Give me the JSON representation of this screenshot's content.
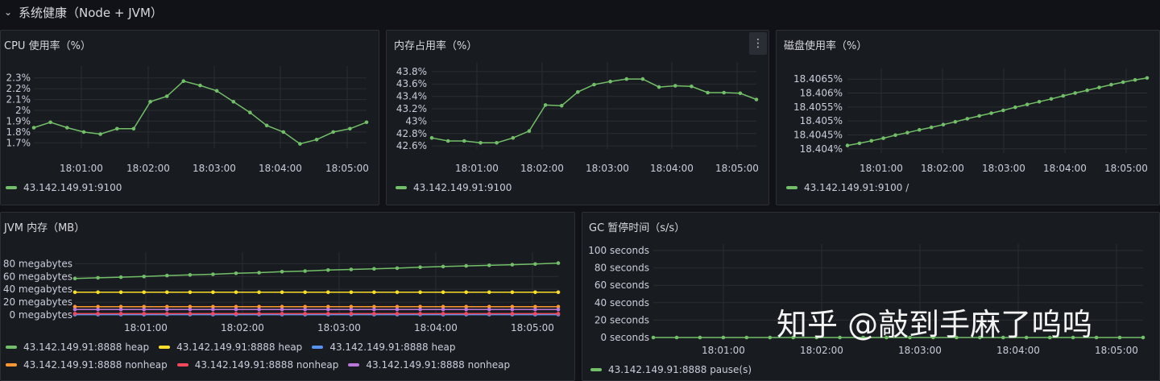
{
  "row": {
    "title": "系统健康（Node + JVM）"
  },
  "watermark": "知乎 @敲到手麻了呜呜",
  "colors": {
    "green": "#73bf69",
    "yellow": "#fade2a",
    "blue": "#5794f2",
    "orange": "#ff9830",
    "red": "#f2495c",
    "purple": "#b877d9",
    "grid": "#2a2d33",
    "tick": "#ccccdc"
  },
  "panels": {
    "cpu": {
      "title": "CPU 使用率（%）",
      "chart_data": {
        "type": "line",
        "x_ticks": [
          "18:01:00",
          "18:02:00",
          "18:03:00",
          "18:04:00",
          "18:05:00"
        ],
        "y_ticks": [
          "2.3%",
          "2.2%",
          "2.1%",
          "2%",
          "1.9%",
          "1.8%",
          "1.7%"
        ],
        "ylim": [
          1.65,
          2.35
        ],
        "series": [
          {
            "name": "43.142.149.91:9100",
            "color": "#73bf69",
            "values": [
              1.84,
              1.89,
              1.84,
              1.8,
              1.78,
              1.83,
              1.83,
              2.08,
              2.13,
              2.27,
              2.23,
              2.18,
              2.08,
              1.98,
              1.86,
              1.8,
              1.69,
              1.73,
              1.8,
              1.83,
              1.89
            ]
          }
        ]
      }
    },
    "mem": {
      "title": "内存占用率（%）",
      "chart_data": {
        "type": "line",
        "x_ticks": [
          "18:01:00",
          "18:02:00",
          "18:03:00",
          "18:04:00",
          "18:05:00"
        ],
        "y_ticks": [
          "43.8%",
          "43.6%",
          "43.4%",
          "43.2%",
          "43%",
          "42.8%",
          "42.6%"
        ],
        "ylim": [
          42.55,
          43.85
        ],
        "series": [
          {
            "name": "43.142.149.91:9100",
            "color": "#73bf69",
            "values": [
              42.73,
              42.68,
              42.68,
              42.65,
              42.65,
              42.73,
              42.84,
              43.26,
              43.25,
              43.47,
              43.59,
              43.64,
              43.68,
              43.68,
              43.55,
              43.57,
              43.56,
              43.46,
              43.46,
              43.45,
              43.35
            ]
          }
        ]
      }
    },
    "disk": {
      "title": "磁盘使用率（%）",
      "chart_data": {
        "type": "line",
        "x_ticks": [
          "18:01:00",
          "18:02:00",
          "18:03:00",
          "18:04:00",
          "18:05:00"
        ],
        "y_ticks": [
          "18.4065%",
          "18.406%",
          "18.4055%",
          "18.405%",
          "18.4045%",
          "18.404%"
        ],
        "ylim": [
          18.40385,
          18.40665
        ],
        "series": [
          {
            "name": "43.142.149.91:9100 /",
            "color": "#73bf69",
            "values": [
              18.40412,
              18.4042,
              18.40429,
              18.40438,
              18.40449,
              18.40458,
              18.40468,
              18.40477,
              18.40487,
              18.40497,
              18.40508,
              18.40518,
              18.40528,
              18.40538,
              18.40549,
              18.40559,
              18.40569,
              18.40579,
              18.4059,
              18.406,
              18.4061,
              18.4062,
              18.4063,
              18.40639,
              18.40647,
              18.40654
            ]
          }
        ]
      }
    },
    "jvm": {
      "title": "JVM 内存（MB）",
      "chart_data": {
        "type": "line",
        "x_ticks": [
          "18:01:00",
          "18:02:00",
          "18:03:00",
          "18:04:00",
          "18:05:00"
        ],
        "y_ticks": [
          "80 megabytes",
          "60 megabytes",
          "40 megabytes",
          "20 megabytes",
          "0 megabytes"
        ],
        "ylim": [
          0,
          88
        ],
        "series": [
          {
            "name": "43.142.149.91:8888 heap",
            "color": "#73bf69",
            "values": [
              57,
              58,
              59,
              60,
              61.5,
              62.5,
              63.5,
              65,
              66,
              67.5,
              68.5,
              70,
              71,
              72,
              73,
              74.5,
              75.5,
              76.5,
              77.5,
              78.5,
              79.5,
              81
            ]
          },
          {
            "name": "43.142.149.91:8888 heap",
            "color": "#fade2a",
            "values": [
              35.5,
              35.5,
              35.5,
              35.5,
              35.5,
              35.5,
              35.5,
              35.5,
              35.5,
              35.5,
              35.5,
              35.5,
              35.5,
              35.5,
              35.5,
              35.5,
              35.5,
              35.5,
              35.5,
              35.5,
              35.5,
              35.5
            ]
          },
          {
            "name": "43.142.149.91:8888 heap",
            "color": "#5794f2",
            "values": [
              0.5,
              0.5,
              0.5,
              0.5,
              0.5,
              0.5,
              0.5,
              0.5,
              0.5,
              0.5,
              0.5,
              0.5,
              0.5,
              0.5,
              0.5,
              0.5,
              0.5,
              0.5,
              0.5,
              0.5,
              0.5,
              0.5
            ]
          },
          {
            "name": "43.142.149.91:8888 nonheap",
            "color": "#ff9830",
            "values": [
              13,
              13,
              13,
              13,
              13,
              13,
              13,
              13,
              13,
              13,
              13,
              13,
              13,
              13,
              13,
              13,
              13,
              13,
              13,
              13,
              13,
              13
            ]
          },
          {
            "name": "43.142.149.91:8888 nonheap",
            "color": "#f2495c",
            "values": [
              2,
              2,
              2,
              2,
              2,
              2,
              2,
              2,
              2,
              2,
              2,
              2,
              2,
              2,
              2,
              2,
              2,
              2,
              2,
              2,
              2,
              2
            ]
          },
          {
            "name": "43.142.149.91:8888 nonheap",
            "color": "#b877d9",
            "values": [
              8.5,
              8.5,
              8.5,
              8.5,
              8.5,
              8.5,
              8.5,
              8.5,
              8.5,
              8.5,
              8.5,
              8.5,
              8.5,
              8.5,
              8.5,
              8.5,
              8.5,
              8.5,
              8.5,
              8.5,
              8.5,
              8.5
            ]
          }
        ]
      }
    },
    "gc": {
      "title": "GC 暂停时间（s/s）",
      "chart_data": {
        "type": "line",
        "x_ticks": [
          "18:01:00",
          "18:02:00",
          "18:03:00",
          "18:04:00",
          "18:05:00"
        ],
        "y_ticks": [
          "100 seconds",
          "80 seconds",
          "60 seconds",
          "40 seconds",
          "20 seconds",
          "0 seconds"
        ],
        "ylim": [
          0,
          100
        ],
        "series": [
          {
            "name": "43.142.149.91:8888 pause(s)",
            "color": "#73bf69",
            "values": [
              0,
              0,
              0,
              0,
              0,
              0,
              0,
              0,
              0,
              0,
              0,
              0,
              0,
              0,
              0,
              0,
              0,
              0,
              0,
              0,
              0,
              0
            ]
          }
        ]
      }
    }
  }
}
